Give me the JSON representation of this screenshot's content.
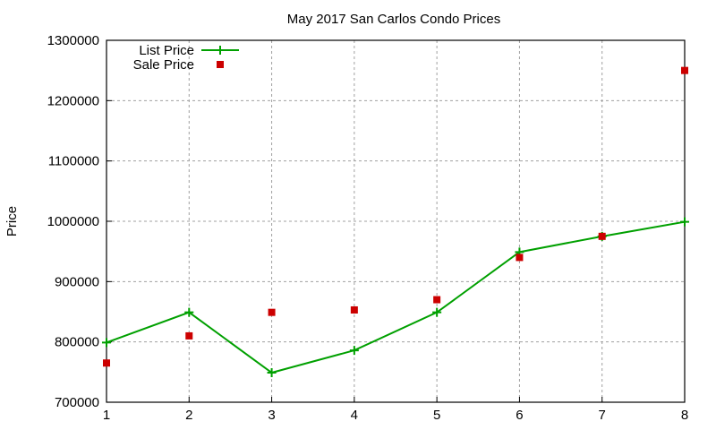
{
  "chart_data": {
    "type": "line",
    "title": "May 2017 San Carlos Condo Prices",
    "xlabel": "",
    "ylabel": "Price",
    "x": [
      1,
      2,
      3,
      4,
      5,
      6,
      7,
      8
    ],
    "xlim": [
      1,
      8
    ],
    "ylim": [
      700000,
      1300000
    ],
    "xticks": [
      "1",
      "2",
      "3",
      "4",
      "5",
      "6",
      "7",
      "8"
    ],
    "yticks": [
      "700000",
      "800000",
      "900000",
      "1000000",
      "1100000",
      "1200000",
      "1300000"
    ],
    "grid": true,
    "legend_position": "top-left",
    "series": [
      {
        "name": "List Price",
        "style": "linespoints",
        "color": "#00a000",
        "values": [
          799000,
          849000,
          749000,
          786000,
          849000,
          949000,
          975000,
          999000
        ]
      },
      {
        "name": "Sale Price",
        "style": "points",
        "color": "#cc0000",
        "values": [
          765000,
          810000,
          849000,
          853000,
          870000,
          940000,
          975000,
          1250000
        ]
      }
    ]
  }
}
